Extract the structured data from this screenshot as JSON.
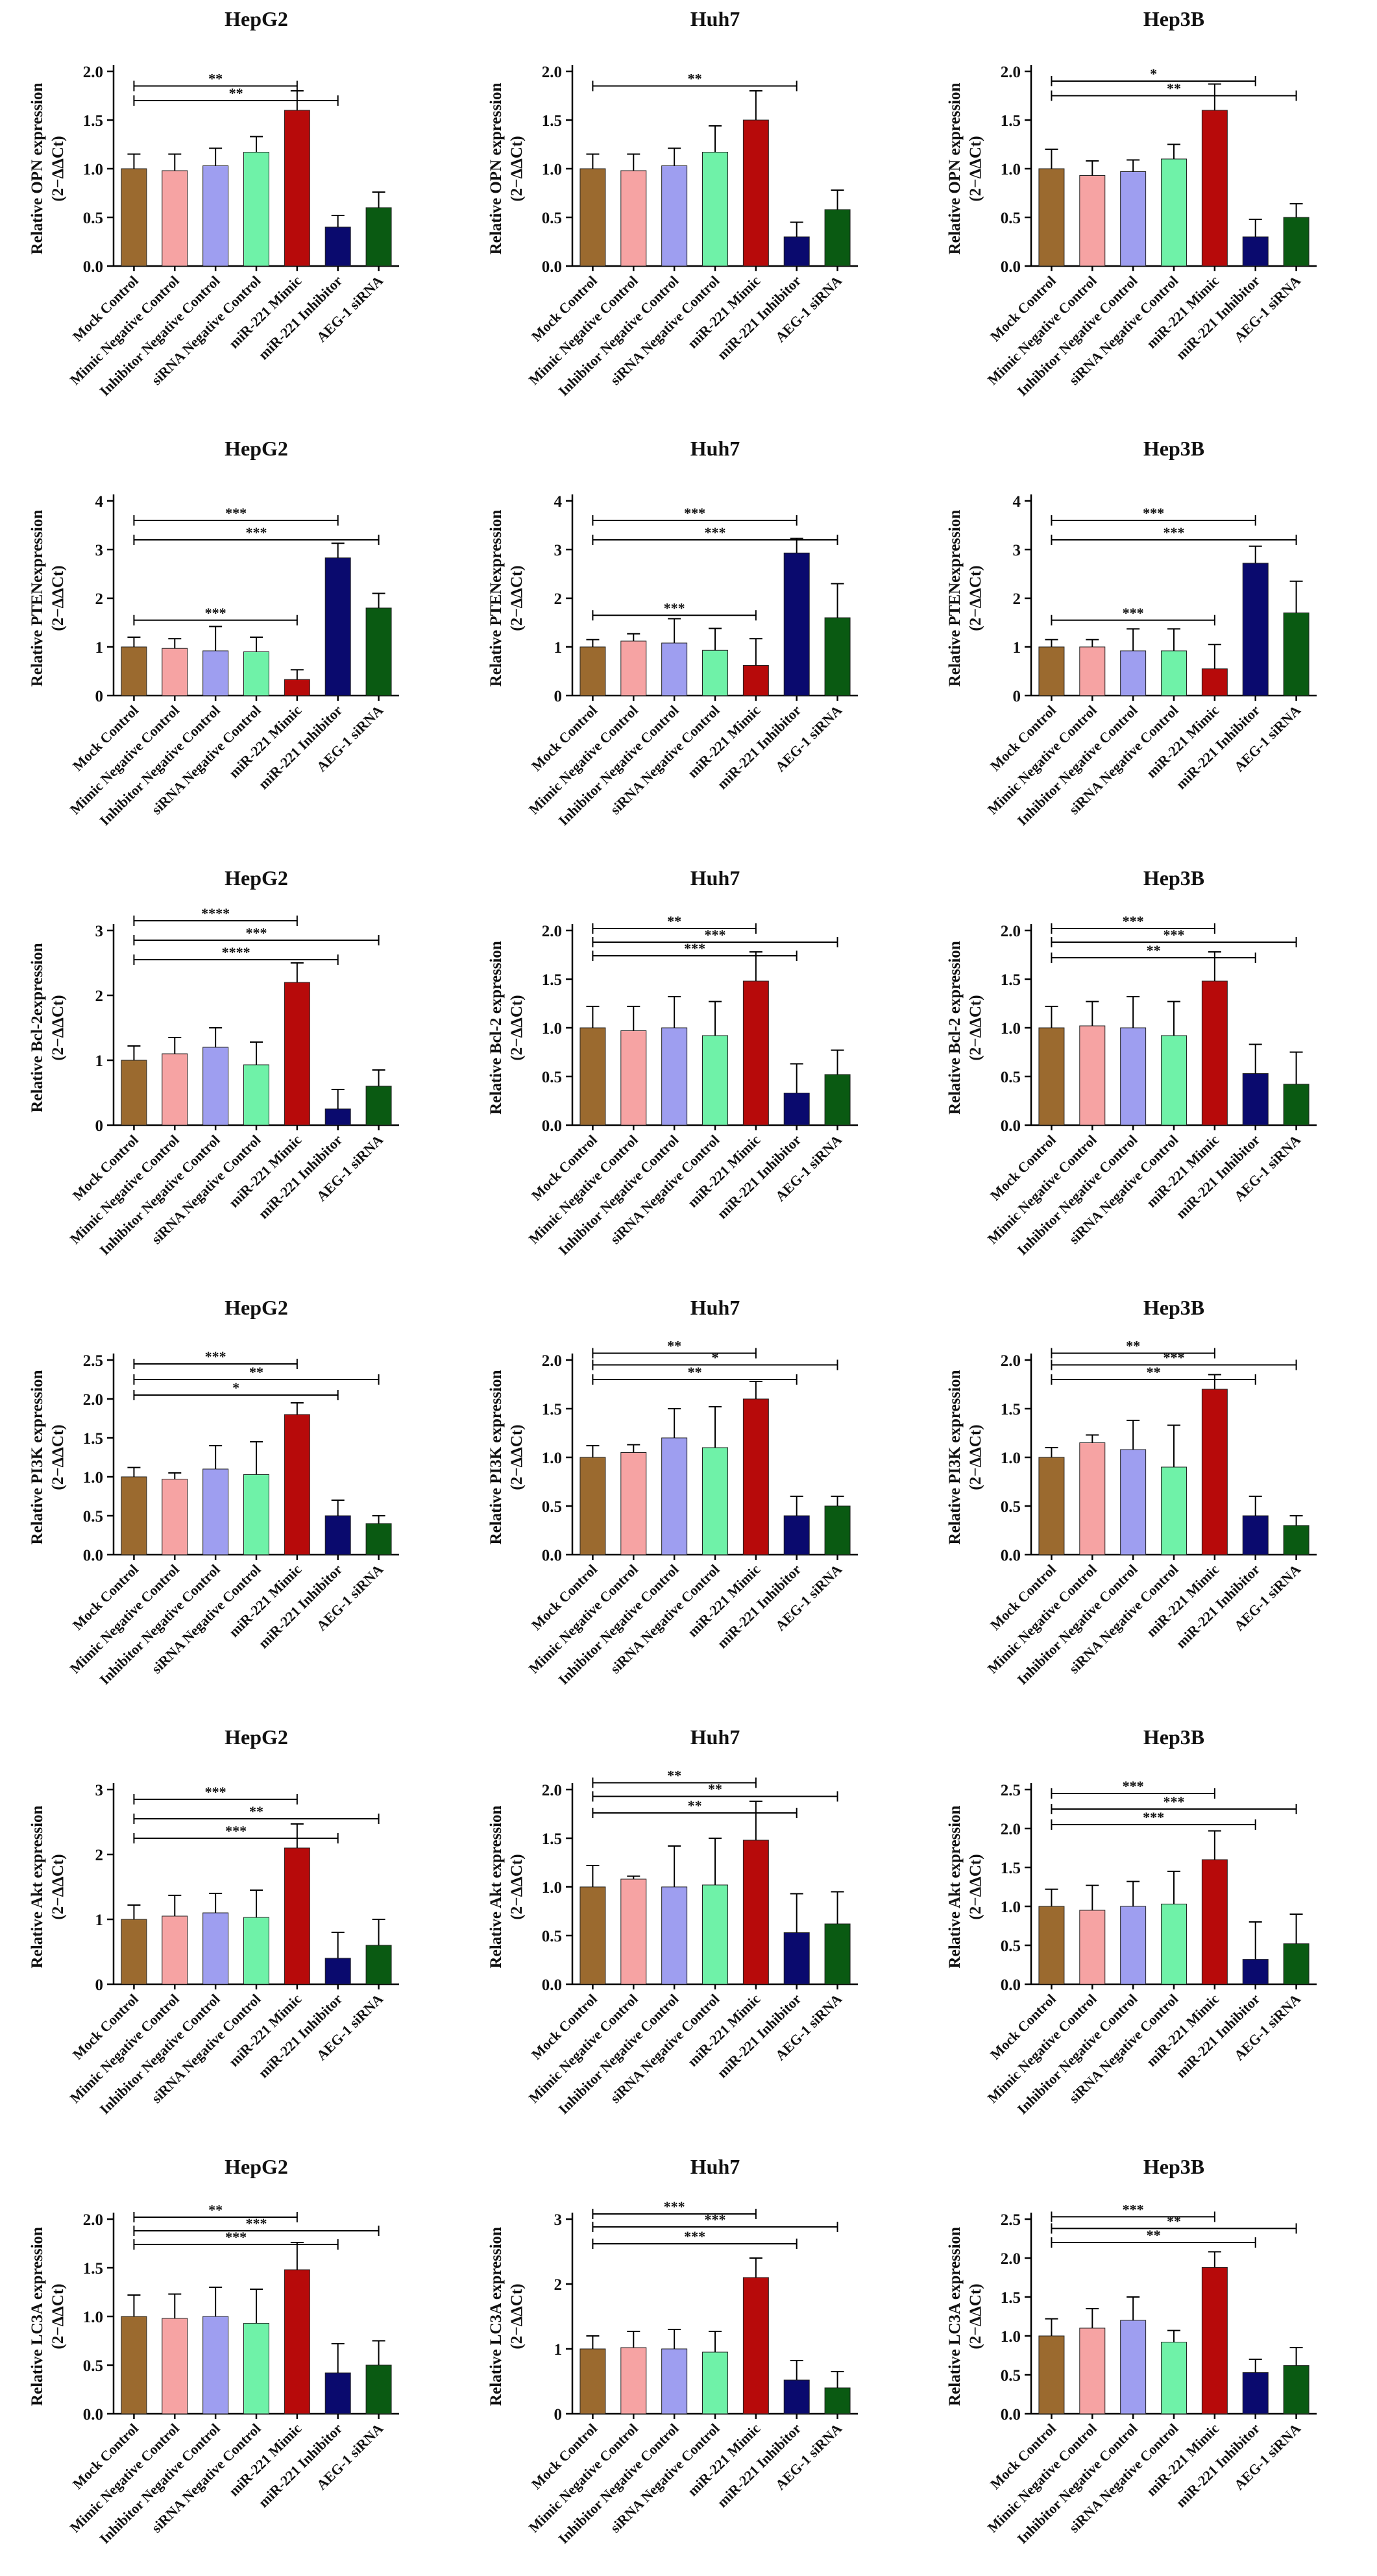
{
  "categories": [
    "Mock Control",
    "Mimic Negative Control",
    "Inhibitor Negative Control",
    "siRNA Negative Control",
    "miR-221 Mimic",
    "miR-221 Inhibitor",
    "AEG-1 siRNA"
  ],
  "bar_colors": [
    "#9b6a2f",
    "#f6a3a3",
    "#9e9ef0",
    "#6ff2a8",
    "#b70a0a",
    "#0a0a6e",
    "#0a5a12"
  ],
  "chart_data": [
    {
      "type": "bar",
      "title": "HepG2",
      "ylabel": "Relative OPN expression",
      "ylabel_sub": "(2−ΔΔCt)",
      "ylim": [
        0,
        2
      ],
      "yticks": [
        "0.0",
        "0.5",
        "1.0",
        "1.5",
        "2.0"
      ],
      "tick_values": [
        0,
        0.5,
        1,
        1.5,
        2
      ],
      "values": [
        1.0,
        0.98,
        1.03,
        1.17,
        1.6,
        0.4,
        0.6
      ],
      "errors": [
        0.15,
        0.17,
        0.18,
        0.16,
        0.2,
        0.12,
        0.16
      ],
      "significance": [
        {
          "from": 0,
          "to": 4,
          "label": "**",
          "y": 1.85
        },
        {
          "from": 0,
          "to": 5,
          "label": "**",
          "y": 1.7
        }
      ]
    },
    {
      "type": "bar",
      "title": "Huh7",
      "ylabel": "Relative OPN expression",
      "ylabel_sub": "(2−ΔΔCt)",
      "ylim": [
        0,
        2
      ],
      "yticks": [
        "0.0",
        "0.5",
        "1.0",
        "1.5",
        "2.0"
      ],
      "tick_values": [
        0,
        0.5,
        1,
        1.5,
        2
      ],
      "values": [
        1.0,
        0.98,
        1.03,
        1.17,
        1.5,
        0.3,
        0.58
      ],
      "errors": [
        0.15,
        0.17,
        0.18,
        0.27,
        0.3,
        0.15,
        0.2
      ],
      "significance": [
        {
          "from": 0,
          "to": 5,
          "label": "**",
          "y": 1.85
        }
      ]
    },
    {
      "type": "bar",
      "title": "Hep3B",
      "ylabel": "Relative OPN expression",
      "ylabel_sub": "(2−ΔΔCt)",
      "ylim": [
        0,
        2
      ],
      "yticks": [
        "0.0",
        "0.5",
        "1.0",
        "1.5",
        "2.0"
      ],
      "tick_values": [
        0,
        0.5,
        1,
        1.5,
        2
      ],
      "values": [
        1.0,
        0.93,
        0.97,
        1.1,
        1.6,
        0.3,
        0.5
      ],
      "errors": [
        0.2,
        0.15,
        0.12,
        0.15,
        0.27,
        0.18,
        0.14
      ],
      "significance": [
        {
          "from": 0,
          "to": 5,
          "label": "*",
          "y": 1.9
        },
        {
          "from": 0,
          "to": 6,
          "label": "**",
          "y": 1.75
        }
      ]
    },
    {
      "type": "bar",
      "title": "HepG2",
      "ylabel": "Relative PTENexpression",
      "ylabel_sub": "(2−ΔΔCt)",
      "ylim": [
        0,
        4
      ],
      "yticks": [
        "0",
        "1",
        "2",
        "3",
        "4"
      ],
      "tick_values": [
        0,
        1,
        2,
        3,
        4
      ],
      "values": [
        1.0,
        0.97,
        0.92,
        0.9,
        0.33,
        2.83,
        1.8
      ],
      "errors": [
        0.2,
        0.2,
        0.5,
        0.3,
        0.2,
        0.3,
        0.3
      ],
      "significance": [
        {
          "from": 0,
          "to": 5,
          "label": "***",
          "y": 3.6
        },
        {
          "from": 0,
          "to": 6,
          "label": "***",
          "y": 3.2
        },
        {
          "from": 0,
          "to": 4,
          "label": "***",
          "y": 1.55
        }
      ]
    },
    {
      "type": "bar",
      "title": "Huh7",
      "ylabel": "Relative PTENexpression",
      "ylabel_sub": "(2−ΔΔCt)",
      "ylim": [
        0,
        4
      ],
      "yticks": [
        "0",
        "1",
        "2",
        "3",
        "4"
      ],
      "tick_values": [
        0,
        1,
        2,
        3,
        4
      ],
      "values": [
        1.0,
        1.12,
        1.08,
        0.93,
        0.62,
        2.93,
        1.6
      ],
      "errors": [
        0.15,
        0.15,
        0.5,
        0.45,
        0.55,
        0.3,
        0.7
      ],
      "significance": [
        {
          "from": 0,
          "to": 5,
          "label": "***",
          "y": 3.6
        },
        {
          "from": 0,
          "to": 6,
          "label": "***",
          "y": 3.2
        },
        {
          "from": 0,
          "to": 4,
          "label": "***",
          "y": 1.65
        }
      ]
    },
    {
      "type": "bar",
      "title": "Hep3B",
      "ylabel": "Relative PTENexpression",
      "ylabel_sub": "(2−ΔΔCt)",
      "ylim": [
        0,
        4
      ],
      "yticks": [
        "0",
        "1",
        "2",
        "3",
        "4"
      ],
      "tick_values": [
        0,
        1,
        2,
        3,
        4
      ],
      "values": [
        1.0,
        1.0,
        0.92,
        0.92,
        0.55,
        2.72,
        1.7
      ],
      "errors": [
        0.15,
        0.15,
        0.45,
        0.45,
        0.5,
        0.35,
        0.65
      ],
      "significance": [
        {
          "from": 0,
          "to": 5,
          "label": "***",
          "y": 3.6
        },
        {
          "from": 0,
          "to": 6,
          "label": "***",
          "y": 3.2
        },
        {
          "from": 0,
          "to": 4,
          "label": "***",
          "y": 1.55
        }
      ]
    },
    {
      "type": "bar",
      "title": "HepG2",
      "ylabel": "Relative Bcl-2expression",
      "ylabel_sub": "(2−ΔΔCt)",
      "ylim": [
        0,
        3
      ],
      "yticks": [
        "0",
        "1",
        "2",
        "3"
      ],
      "tick_values": [
        0,
        1,
        2,
        3
      ],
      "values": [
        1.0,
        1.1,
        1.2,
        0.93,
        2.2,
        0.25,
        0.6
      ],
      "errors": [
        0.22,
        0.25,
        0.3,
        0.35,
        0.3,
        0.3,
        0.25
      ],
      "significance": [
        {
          "from": 0,
          "to": 4,
          "label": "****",
          "y": 3.15
        },
        {
          "from": 0,
          "to": 6,
          "label": "***",
          "y": 2.85
        },
        {
          "from": 0,
          "to": 5,
          "label": "****",
          "y": 2.55
        }
      ]
    },
    {
      "type": "bar",
      "title": "Huh7",
      "ylabel": "Relative Bcl-2 expression",
      "ylabel_sub": "(2−ΔΔCt)",
      "ylim": [
        0,
        2
      ],
      "yticks": [
        "0.0",
        "0.5",
        "1.0",
        "1.5",
        "2.0"
      ],
      "tick_values": [
        0,
        0.5,
        1,
        1.5,
        2
      ],
      "values": [
        1.0,
        0.97,
        1.0,
        0.92,
        1.48,
        0.33,
        0.52
      ],
      "errors": [
        0.22,
        0.25,
        0.32,
        0.35,
        0.3,
        0.3,
        0.25
      ],
      "significance": [
        {
          "from": 0,
          "to": 4,
          "label": "**",
          "y": 2.02
        },
        {
          "from": 0,
          "to": 6,
          "label": "***",
          "y": 1.88
        },
        {
          "from": 0,
          "to": 5,
          "label": "***",
          "y": 1.74
        }
      ]
    },
    {
      "type": "bar",
      "title": "Hep3B",
      "ylabel": "Relative Bcl-2 expression",
      "ylabel_sub": "(2−ΔΔCt)",
      "ylim": [
        0,
        2
      ],
      "yticks": [
        "0.0",
        "0.5",
        "1.0",
        "1.5",
        "2.0"
      ],
      "tick_values": [
        0,
        0.5,
        1,
        1.5,
        2
      ],
      "values": [
        1.0,
        1.02,
        1.0,
        0.92,
        1.48,
        0.53,
        0.42
      ],
      "errors": [
        0.22,
        0.25,
        0.32,
        0.35,
        0.3,
        0.3,
        0.33
      ],
      "significance": [
        {
          "from": 0,
          "to": 4,
          "label": "***",
          "y": 2.02
        },
        {
          "from": 0,
          "to": 6,
          "label": "***",
          "y": 1.88
        },
        {
          "from": 0,
          "to": 5,
          "label": "**",
          "y": 1.72
        }
      ]
    },
    {
      "type": "bar",
      "title": "HepG2",
      "ylabel": "Relative PI3K expression",
      "ylabel_sub": "(2−ΔΔCt)",
      "ylim": [
        0,
        2.5
      ],
      "yticks": [
        "0.0",
        "0.5",
        "1.0",
        "1.5",
        "2.0",
        "2.5"
      ],
      "tick_values": [
        0,
        0.5,
        1,
        1.5,
        2,
        2.5
      ],
      "values": [
        1.0,
        0.97,
        1.1,
        1.03,
        1.8,
        0.5,
        0.4
      ],
      "errors": [
        0.12,
        0.08,
        0.3,
        0.42,
        0.15,
        0.2,
        0.1
      ],
      "significance": [
        {
          "from": 0,
          "to": 4,
          "label": "***",
          "y": 2.45
        },
        {
          "from": 0,
          "to": 6,
          "label": "**",
          "y": 2.25
        },
        {
          "from": 0,
          "to": 5,
          "label": "*",
          "y": 2.05
        }
      ]
    },
    {
      "type": "bar",
      "title": "Huh7",
      "ylabel": "Relative PI3K expression",
      "ylabel_sub": "(2−ΔΔCt)",
      "ylim": [
        0,
        2
      ],
      "yticks": [
        "0.0",
        "0.5",
        "1.0",
        "1.5",
        "2.0"
      ],
      "tick_values": [
        0,
        0.5,
        1,
        1.5,
        2
      ],
      "values": [
        1.0,
        1.05,
        1.2,
        1.1,
        1.6,
        0.4,
        0.5
      ],
      "errors": [
        0.12,
        0.08,
        0.3,
        0.42,
        0.18,
        0.2,
        0.1
      ],
      "significance": [
        {
          "from": 0,
          "to": 4,
          "label": "**",
          "y": 2.07
        },
        {
          "from": 0,
          "to": 6,
          "label": "*",
          "y": 1.95
        },
        {
          "from": 0,
          "to": 5,
          "label": "**",
          "y": 1.8
        }
      ]
    },
    {
      "type": "bar",
      "title": "Hep3B",
      "ylabel": "Relative PI3K expression",
      "ylabel_sub": "(2−ΔΔCt)",
      "ylim": [
        0,
        2
      ],
      "yticks": [
        "0.0",
        "0.5",
        "1.0",
        "1.5",
        "2.0"
      ],
      "tick_values": [
        0,
        0.5,
        1,
        1.5,
        2
      ],
      "values": [
        1.0,
        1.15,
        1.08,
        0.9,
        1.7,
        0.4,
        0.3
      ],
      "errors": [
        0.1,
        0.08,
        0.3,
        0.43,
        0.15,
        0.2,
        0.1
      ],
      "significance": [
        {
          "from": 0,
          "to": 4,
          "label": "**",
          "y": 2.07
        },
        {
          "from": 0,
          "to": 6,
          "label": "***",
          "y": 1.95
        },
        {
          "from": 0,
          "to": 5,
          "label": "**",
          "y": 1.8
        }
      ]
    },
    {
      "type": "bar",
      "title": "HepG2",
      "ylabel": "Relative Akt expression",
      "ylabel_sub": "(2−ΔΔCt)",
      "ylim": [
        0,
        3
      ],
      "yticks": [
        "0",
        "1",
        "2",
        "3"
      ],
      "tick_values": [
        0,
        1,
        2,
        3
      ],
      "values": [
        1.0,
        1.05,
        1.1,
        1.03,
        2.1,
        0.4,
        0.6
      ],
      "errors": [
        0.22,
        0.32,
        0.3,
        0.42,
        0.37,
        0.4,
        0.4
      ],
      "significance": [
        {
          "from": 0,
          "to": 4,
          "label": "***",
          "y": 2.85
        },
        {
          "from": 0,
          "to": 6,
          "label": "**",
          "y": 2.55
        },
        {
          "from": 0,
          "to": 5,
          "label": "***",
          "y": 2.25
        }
      ]
    },
    {
      "type": "bar",
      "title": "Huh7",
      "ylabel": "Relative Akt expression",
      "ylabel_sub": "(2−ΔΔCt)",
      "ylim": [
        0,
        2
      ],
      "yticks": [
        "0.0",
        "0.5",
        "1.0",
        "1.5",
        "2.0"
      ],
      "tick_values": [
        0,
        0.5,
        1,
        1.5,
        2
      ],
      "values": [
        1.0,
        1.08,
        1.0,
        1.02,
        1.48,
        0.53,
        0.62
      ],
      "errors": [
        0.22,
        0.03,
        0.42,
        0.48,
        0.4,
        0.4,
        0.33
      ],
      "significance": [
        {
          "from": 0,
          "to": 4,
          "label": "**",
          "y": 2.07
        },
        {
          "from": 0,
          "to": 6,
          "label": "**",
          "y": 1.93
        },
        {
          "from": 0,
          "to": 5,
          "label": "**",
          "y": 1.76
        }
      ]
    },
    {
      "type": "bar",
      "title": "Hep3B",
      "ylabel": "Relative Akt expression",
      "ylabel_sub": "(2−ΔΔCt)",
      "ylim": [
        0,
        2.5
      ],
      "yticks": [
        "0.0",
        "0.5",
        "1.0",
        "1.5",
        "2.0",
        "2.5"
      ],
      "tick_values": [
        0,
        0.5,
        1,
        1.5,
        2,
        2.5
      ],
      "values": [
        1.0,
        0.95,
        1.0,
        1.03,
        1.6,
        0.32,
        0.52
      ],
      "errors": [
        0.22,
        0.32,
        0.32,
        0.42,
        0.37,
        0.48,
        0.38
      ],
      "significance": [
        {
          "from": 0,
          "to": 4,
          "label": "***",
          "y": 2.45
        },
        {
          "from": 0,
          "to": 6,
          "label": "***",
          "y": 2.25
        },
        {
          "from": 0,
          "to": 5,
          "label": "***",
          "y": 2.05
        }
      ]
    },
    {
      "type": "bar",
      "title": "HepG2",
      "ylabel": "Relative LC3A expression",
      "ylabel_sub": "(2−ΔΔCt)",
      "ylim": [
        0,
        2
      ],
      "yticks": [
        "0.0",
        "0.5",
        "1.0",
        "1.5",
        "2.0"
      ],
      "tick_values": [
        0,
        0.5,
        1,
        1.5,
        2
      ],
      "values": [
        1.0,
        0.98,
        1.0,
        0.93,
        1.48,
        0.42,
        0.5
      ],
      "errors": [
        0.22,
        0.25,
        0.3,
        0.35,
        0.28,
        0.3,
        0.25
      ],
      "significance": [
        {
          "from": 0,
          "to": 4,
          "label": "**",
          "y": 2.02
        },
        {
          "from": 0,
          "to": 6,
          "label": "***",
          "y": 1.88
        },
        {
          "from": 0,
          "to": 5,
          "label": "***",
          "y": 1.74
        }
      ]
    },
    {
      "type": "bar",
      "title": "Huh7",
      "ylabel": "Relative LC3A expression",
      "ylabel_sub": "(2−ΔΔCt)",
      "ylim": [
        0,
        3
      ],
      "yticks": [
        "0",
        "1",
        "2",
        "3"
      ],
      "tick_values": [
        0,
        1,
        2,
        3
      ],
      "values": [
        1.0,
        1.02,
        1.0,
        0.95,
        2.1,
        0.52,
        0.4
      ],
      "errors": [
        0.2,
        0.25,
        0.3,
        0.32,
        0.3,
        0.3,
        0.25
      ],
      "significance": [
        {
          "from": 0,
          "to": 4,
          "label": "***",
          "y": 3.08
        },
        {
          "from": 0,
          "to": 6,
          "label": "***",
          "y": 2.88
        },
        {
          "from": 0,
          "to": 5,
          "label": "***",
          "y": 2.62
        }
      ]
    },
    {
      "type": "bar",
      "title": "Hep3B",
      "ylabel": "Relative LC3A expression",
      "ylabel_sub": "(2−ΔΔCt)",
      "ylim": [
        0,
        2.5
      ],
      "yticks": [
        "0.0",
        "0.5",
        "1.0",
        "1.5",
        "2.0",
        "2.5"
      ],
      "tick_values": [
        0,
        0.5,
        1,
        1.5,
        2,
        2.5
      ],
      "values": [
        1.0,
        1.1,
        1.2,
        0.92,
        1.88,
        0.53,
        0.62
      ],
      "errors": [
        0.22,
        0.25,
        0.3,
        0.15,
        0.2,
        0.17,
        0.23
      ],
      "significance": [
        {
          "from": 0,
          "to": 4,
          "label": "***",
          "y": 2.53
        },
        {
          "from": 0,
          "to": 6,
          "label": "**",
          "y": 2.38
        },
        {
          "from": 0,
          "to": 5,
          "label": "**",
          "y": 2.2
        }
      ]
    }
  ]
}
